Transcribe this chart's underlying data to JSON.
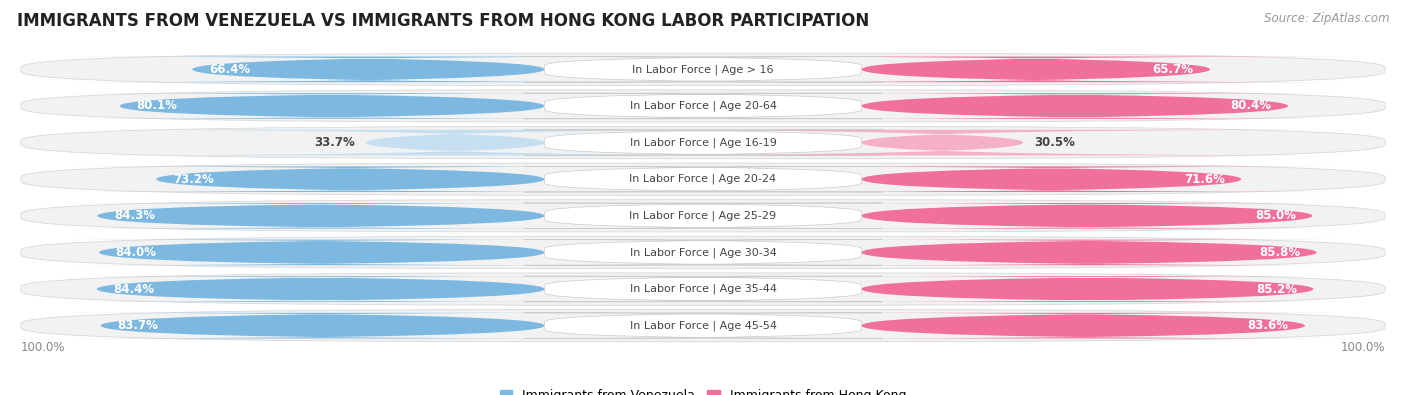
{
  "title": "IMMIGRANTS FROM VENEZUELA VS IMMIGRANTS FROM HONG KONG LABOR PARTICIPATION",
  "source": "Source: ZipAtlas.com",
  "categories": [
    "In Labor Force | Age > 16",
    "In Labor Force | Age 20-64",
    "In Labor Force | Age 16-19",
    "In Labor Force | Age 20-24",
    "In Labor Force | Age 25-29",
    "In Labor Force | Age 30-34",
    "In Labor Force | Age 35-44",
    "In Labor Force | Age 45-54"
  ],
  "venezuela_values": [
    66.4,
    80.1,
    33.7,
    73.2,
    84.3,
    84.0,
    84.4,
    83.7
  ],
  "hongkong_values": [
    65.7,
    80.4,
    30.5,
    71.6,
    85.0,
    85.8,
    85.2,
    83.6
  ],
  "venezuela_color": "#7db8e0",
  "venezuela_color_light": "#c5dff0",
  "hongkong_color": "#f07099",
  "hongkong_color_light": "#f5b0c8",
  "row_bg_color": "#f0f0f0",
  "row_bg_odd": "#e8e8e8",
  "max_value": 100.0,
  "legend_venezuela": "Immigrants from Venezuela",
  "legend_hongkong": "Immigrants from Hong Kong",
  "title_fontsize": 12,
  "source_fontsize": 8.5,
  "bar_label_fontsize": 8.5,
  "category_fontsize": 8.0,
  "bottom_label": "100.0%"
}
